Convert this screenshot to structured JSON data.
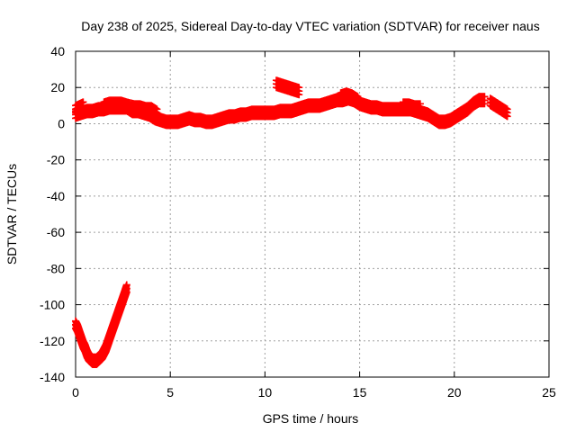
{
  "chart_data": {
    "type": "scatter",
    "title": "Day 238 of 2025, Sidereal Day-to-day VTEC variation (SDTVAR) for receiver naus",
    "xlabel": "GPS time / hours",
    "ylabel": "SDTVAR / TECUs",
    "xlim": [
      0,
      25
    ],
    "ylim": [
      -140,
      40
    ],
    "xticks": [
      0,
      5,
      10,
      15,
      20,
      25
    ],
    "yticks": [
      -140,
      -120,
      -100,
      -80,
      -60,
      -40,
      -20,
      0,
      20,
      40
    ],
    "grid": true,
    "marker": "plus",
    "colors": {
      "series": "#ff0000",
      "grid": "#a0a0a0",
      "axis": "#000000",
      "background": "#ffffff"
    },
    "series": [
      {
        "name": "main",
        "points": [
          [
            0.0,
            5
          ],
          [
            0.3,
            6
          ],
          [
            0.6,
            7
          ],
          [
            0.9,
            7
          ],
          [
            1.2,
            8
          ],
          [
            1.5,
            8
          ],
          [
            1.8,
            9
          ],
          [
            2.1,
            9
          ],
          [
            2.4,
            9
          ],
          [
            2.7,
            9
          ],
          [
            3.0,
            7
          ],
          [
            3.3,
            7
          ],
          [
            3.6,
            6
          ],
          [
            3.9,
            5
          ],
          [
            4.2,
            3
          ],
          [
            4.5,
            2
          ],
          [
            4.8,
            1
          ],
          [
            5.1,
            1
          ],
          [
            5.4,
            1
          ],
          [
            5.7,
            2
          ],
          [
            6.0,
            3
          ],
          [
            6.3,
            2
          ],
          [
            6.6,
            2
          ],
          [
            6.9,
            1
          ],
          [
            7.2,
            1
          ],
          [
            7.5,
            2
          ],
          [
            7.8,
            3
          ],
          [
            8.1,
            4
          ],
          [
            8.4,
            4
          ],
          [
            8.7,
            5
          ],
          [
            9.0,
            5
          ],
          [
            9.3,
            6
          ],
          [
            9.6,
            6
          ],
          [
            9.9,
            6
          ],
          [
            10.2,
            6
          ],
          [
            10.5,
            6
          ],
          [
            10.8,
            7
          ],
          [
            11.1,
            7
          ],
          [
            11.4,
            7
          ],
          [
            11.7,
            8
          ],
          [
            12.0,
            9
          ],
          [
            12.3,
            10
          ],
          [
            12.6,
            10
          ],
          [
            12.9,
            10
          ],
          [
            13.2,
            11
          ],
          [
            13.5,
            12
          ],
          [
            13.8,
            13
          ],
          [
            14.1,
            13
          ],
          [
            14.4,
            14
          ],
          [
            14.7,
            13
          ],
          [
            15.0,
            11
          ],
          [
            15.3,
            10
          ],
          [
            15.6,
            9
          ],
          [
            15.9,
            9
          ],
          [
            16.2,
            8
          ],
          [
            16.5,
            8
          ],
          [
            16.8,
            8
          ],
          [
            17.1,
            8
          ],
          [
            17.4,
            8
          ],
          [
            17.7,
            8
          ],
          [
            18.0,
            7
          ],
          [
            18.3,
            6
          ],
          [
            18.6,
            5
          ],
          [
            18.9,
            3
          ],
          [
            19.2,
            1
          ],
          [
            19.5,
            1
          ],
          [
            19.8,
            2
          ],
          [
            20.1,
            4
          ],
          [
            20.4,
            6
          ],
          [
            20.7,
            8
          ],
          [
            21.0,
            11
          ],
          [
            21.3,
            13
          ],
          [
            21.6,
            13
          ]
        ]
      },
      {
        "name": "upper-segments",
        "points": [
          [
            0.0,
            8
          ],
          [
            0.2,
            9
          ],
          [
            0.4,
            10
          ],
          [
            1.5,
            10
          ],
          [
            1.8,
            11
          ],
          [
            2.1,
            11
          ],
          [
            2.4,
            11
          ],
          [
            2.7,
            10
          ],
          [
            3.1,
            9
          ],
          [
            3.4,
            9
          ],
          [
            3.7,
            8
          ],
          [
            4.0,
            8
          ],
          [
            4.3,
            6
          ],
          [
            10.6,
            22
          ],
          [
            10.9,
            21
          ],
          [
            11.2,
            20
          ],
          [
            11.5,
            19
          ],
          [
            11.8,
            18
          ],
          [
            14.0,
            15
          ],
          [
            14.3,
            16
          ],
          [
            14.6,
            15
          ],
          [
            14.9,
            13
          ],
          [
            17.3,
            10
          ],
          [
            17.6,
            10
          ],
          [
            17.9,
            9
          ],
          [
            18.2,
            9
          ],
          [
            21.9,
            12
          ],
          [
            22.2,
            10
          ],
          [
            22.5,
            8
          ],
          [
            22.8,
            6
          ]
        ]
      },
      {
        "name": "dip",
        "points": [
          [
            0.0,
            -111
          ],
          [
            0.1,
            -113
          ],
          [
            0.2,
            -116
          ],
          [
            0.3,
            -119
          ],
          [
            0.4,
            -122
          ],
          [
            0.5,
            -124
          ],
          [
            0.6,
            -127
          ],
          [
            0.7,
            -129
          ],
          [
            0.8,
            -130
          ],
          [
            0.9,
            -131
          ],
          [
            1.0,
            -131
          ],
          [
            1.1,
            -131
          ],
          [
            1.2,
            -130
          ],
          [
            1.3,
            -129
          ],
          [
            1.4,
            -128
          ],
          [
            1.5,
            -126
          ],
          [
            1.6,
            -124
          ],
          [
            1.7,
            -121
          ],
          [
            1.8,
            -118
          ],
          [
            1.9,
            -115
          ],
          [
            2.0,
            -112
          ],
          [
            2.1,
            -109
          ],
          [
            2.2,
            -106
          ],
          [
            2.3,
            -103
          ],
          [
            2.4,
            -100
          ],
          [
            2.5,
            -97
          ],
          [
            2.6,
            -94
          ],
          [
            2.7,
            -91
          ]
        ]
      }
    ]
  }
}
